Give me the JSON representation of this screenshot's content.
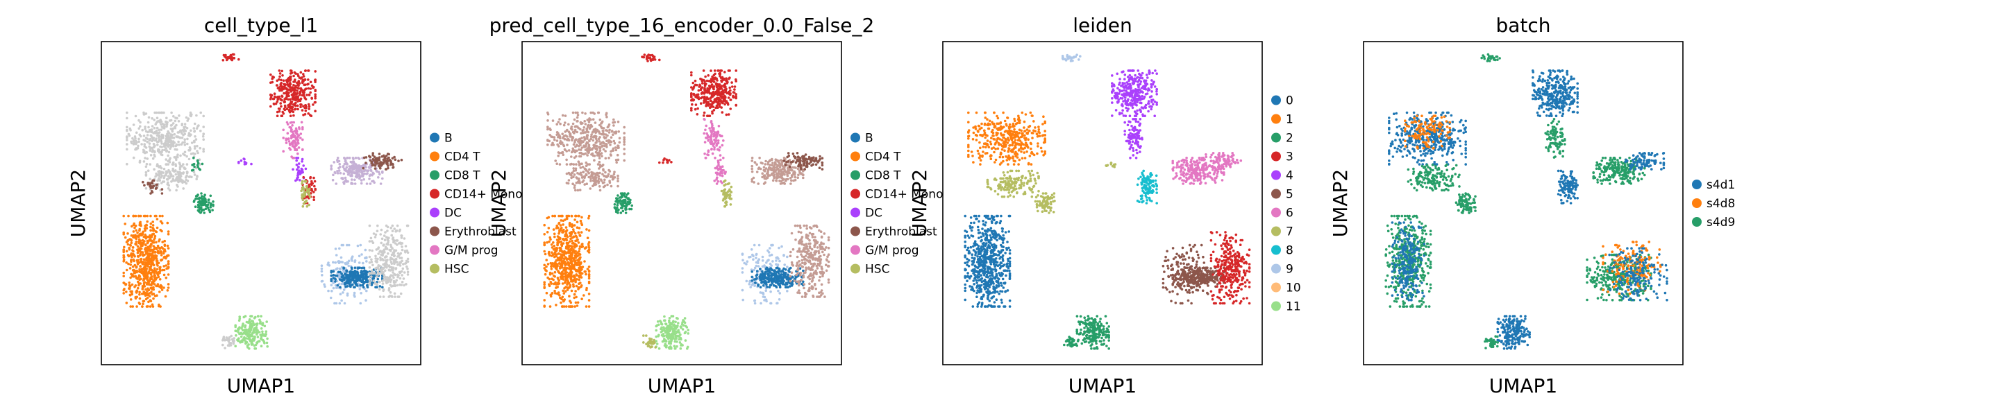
{
  "chart_data": [
    {
      "type": "scatter",
      "title": "cell_type_l1",
      "xlabel": "UMAP1",
      "ylabel": "UMAP2",
      "grid": false,
      "legend": "right",
      "legend_entries": [
        {
          "label": "B",
          "color": "#1f77b4"
        },
        {
          "label": "CD4 T",
          "color": "#ff7f0e"
        },
        {
          "label": "CD8 T",
          "color": "#279e68"
        },
        {
          "label": "CD14+ Mono",
          "color": "#d62728"
        },
        {
          "label": "DC",
          "color": "#aa40fc"
        },
        {
          "label": "Erythroblast",
          "color": "#8c564b"
        },
        {
          "label": "G/M prog",
          "color": "#e377c2"
        },
        {
          "label": "HSC",
          "color": "#b5bd61"
        }
      ],
      "clusters": [
        {
          "x": 0.4,
          "y": 0.95,
          "rx": 0.03,
          "ry": 0.01,
          "color": "#d62728",
          "n": 25
        },
        {
          "x": 0.6,
          "y": 0.84,
          "rx": 0.07,
          "ry": 0.07,
          "color": "#d62728",
          "n": 320
        },
        {
          "x": 0.6,
          "y": 0.7,
          "rx": 0.03,
          "ry": 0.06,
          "color": "#e377c2",
          "n": 90
        },
        {
          "x": 0.62,
          "y": 0.6,
          "rx": 0.02,
          "ry": 0.04,
          "color": "#aa40fc",
          "n": 40
        },
        {
          "x": 0.65,
          "y": 0.54,
          "rx": 0.02,
          "ry": 0.04,
          "color": "#d62728",
          "n": 50
        },
        {
          "x": 0.64,
          "y": 0.53,
          "rx": 0.015,
          "ry": 0.04,
          "color": "#b5bd61",
          "n": 40
        },
        {
          "x": 0.8,
          "y": 0.6,
          "rx": 0.08,
          "ry": 0.04,
          "color": "#c5b0d5",
          "n": 220
        },
        {
          "x": 0.88,
          "y": 0.63,
          "rx": 0.06,
          "ry": 0.025,
          "color": "#8c564b",
          "n": 90
        },
        {
          "x": 0.45,
          "y": 0.63,
          "rx": 0.02,
          "ry": 0.01,
          "color": "#aa40fc",
          "n": 10
        },
        {
          "x": 0.2,
          "y": 0.7,
          "rx": 0.12,
          "ry": 0.08,
          "color": "#cccccc",
          "n": 400
        },
        {
          "x": 0.22,
          "y": 0.58,
          "rx": 0.08,
          "ry": 0.04,
          "color": "#cccccc",
          "n": 150
        },
        {
          "x": 0.3,
          "y": 0.62,
          "rx": 0.03,
          "ry": 0.02,
          "color": "#279e68",
          "n": 15
        },
        {
          "x": 0.16,
          "y": 0.55,
          "rx": 0.03,
          "ry": 0.02,
          "color": "#8c564b",
          "n": 25
        },
        {
          "x": 0.32,
          "y": 0.5,
          "rx": 0.03,
          "ry": 0.03,
          "color": "#279e68",
          "n": 80
        },
        {
          "x": 0.14,
          "y": 0.32,
          "rx": 0.07,
          "ry": 0.14,
          "color": "#ff7f0e",
          "n": 620
        },
        {
          "x": 0.76,
          "y": 0.28,
          "rx": 0.07,
          "ry": 0.09,
          "color": "#aec7e8",
          "n": 150
        },
        {
          "x": 0.8,
          "y": 0.27,
          "rx": 0.08,
          "ry": 0.03,
          "color": "#1f77b4",
          "n": 260
        },
        {
          "x": 0.9,
          "y": 0.32,
          "rx": 0.06,
          "ry": 0.11,
          "color": "#cccccc",
          "n": 300
        },
        {
          "x": 0.47,
          "y": 0.1,
          "rx": 0.05,
          "ry": 0.05,
          "color": "#98df8a",
          "n": 200
        },
        {
          "x": 0.4,
          "y": 0.07,
          "rx": 0.02,
          "ry": 0.02,
          "color": "#cccccc",
          "n": 30
        }
      ]
    },
    {
      "type": "scatter",
      "title": "pred_cell_type_16_encoder_0.0_False_2",
      "xlabel": "UMAP1",
      "ylabel": "UMAP2",
      "grid": false,
      "legend": "right",
      "legend_entries": [
        {
          "label": "B",
          "color": "#1f77b4"
        },
        {
          "label": "CD4 T",
          "color": "#ff7f0e"
        },
        {
          "label": "CD8 T",
          "color": "#279e68"
        },
        {
          "label": "CD14+ Mono",
          "color": "#d62728"
        },
        {
          "label": "DC",
          "color": "#aa40fc"
        },
        {
          "label": "Erythroblast",
          "color": "#8c564b"
        },
        {
          "label": "G/M prog",
          "color": "#e377c2"
        },
        {
          "label": "HSC",
          "color": "#b5bd61"
        }
      ],
      "clusters": [
        {
          "x": 0.4,
          "y": 0.95,
          "rx": 0.03,
          "ry": 0.01,
          "color": "#d62728",
          "n": 25
        },
        {
          "x": 0.6,
          "y": 0.84,
          "rx": 0.07,
          "ry": 0.07,
          "color": "#d62728",
          "n": 320
        },
        {
          "x": 0.6,
          "y": 0.7,
          "rx": 0.03,
          "ry": 0.06,
          "color": "#e377c2",
          "n": 90
        },
        {
          "x": 0.62,
          "y": 0.6,
          "rx": 0.02,
          "ry": 0.04,
          "color": "#e377c2",
          "n": 40
        },
        {
          "x": 0.64,
          "y": 0.53,
          "rx": 0.015,
          "ry": 0.04,
          "color": "#b5bd61",
          "n": 50
        },
        {
          "x": 0.8,
          "y": 0.6,
          "rx": 0.08,
          "ry": 0.04,
          "color": "#c49c94",
          "n": 220
        },
        {
          "x": 0.88,
          "y": 0.63,
          "rx": 0.06,
          "ry": 0.025,
          "color": "#8c564b",
          "n": 90
        },
        {
          "x": 0.45,
          "y": 0.63,
          "rx": 0.02,
          "ry": 0.01,
          "color": "#d62728",
          "n": 10
        },
        {
          "x": 0.2,
          "y": 0.7,
          "rx": 0.12,
          "ry": 0.08,
          "color": "#c49c94",
          "n": 400
        },
        {
          "x": 0.22,
          "y": 0.58,
          "rx": 0.08,
          "ry": 0.04,
          "color": "#c49c94",
          "n": 150
        },
        {
          "x": 0.32,
          "y": 0.5,
          "rx": 0.03,
          "ry": 0.03,
          "color": "#279e68",
          "n": 80
        },
        {
          "x": 0.14,
          "y": 0.32,
          "rx": 0.07,
          "ry": 0.14,
          "color": "#ff7f0e",
          "n": 620
        },
        {
          "x": 0.76,
          "y": 0.28,
          "rx": 0.07,
          "ry": 0.09,
          "color": "#aec7e8",
          "n": 150
        },
        {
          "x": 0.8,
          "y": 0.27,
          "rx": 0.08,
          "ry": 0.03,
          "color": "#1f77b4",
          "n": 260
        },
        {
          "x": 0.9,
          "y": 0.32,
          "rx": 0.06,
          "ry": 0.11,
          "color": "#c49c94",
          "n": 300
        },
        {
          "x": 0.47,
          "y": 0.1,
          "rx": 0.05,
          "ry": 0.05,
          "color": "#98df8a",
          "n": 200
        },
        {
          "x": 0.4,
          "y": 0.07,
          "rx": 0.02,
          "ry": 0.02,
          "color": "#b5bd61",
          "n": 30
        }
      ]
    },
    {
      "type": "scatter",
      "title": "leiden",
      "xlabel": "UMAP1",
      "ylabel": "UMAP2",
      "grid": false,
      "legend": "right",
      "legend_entries": [
        {
          "label": "0",
          "color": "#1f77b4"
        },
        {
          "label": "1",
          "color": "#ff7f0e"
        },
        {
          "label": "2",
          "color": "#279e68"
        },
        {
          "label": "3",
          "color": "#d62728"
        },
        {
          "label": "4",
          "color": "#aa40fc"
        },
        {
          "label": "5",
          "color": "#8c564b"
        },
        {
          "label": "6",
          "color": "#e377c2"
        },
        {
          "label": "7",
          "color": "#b5bd61"
        },
        {
          "label": "8",
          "color": "#17becf"
        },
        {
          "label": "9",
          "color": "#aec7e8"
        },
        {
          "label": "10",
          "color": "#ffbb78"
        },
        {
          "label": "11",
          "color": "#98df8a"
        }
      ],
      "clusters": [
        {
          "x": 0.4,
          "y": 0.95,
          "rx": 0.03,
          "ry": 0.01,
          "color": "#aec7e8",
          "n": 25
        },
        {
          "x": 0.6,
          "y": 0.84,
          "rx": 0.07,
          "ry": 0.07,
          "color": "#aa40fc",
          "n": 320
        },
        {
          "x": 0.6,
          "y": 0.7,
          "rx": 0.03,
          "ry": 0.06,
          "color": "#aa40fc",
          "n": 90
        },
        {
          "x": 0.64,
          "y": 0.55,
          "rx": 0.03,
          "ry": 0.05,
          "color": "#17becf",
          "n": 110
        },
        {
          "x": 0.8,
          "y": 0.6,
          "rx": 0.08,
          "ry": 0.04,
          "color": "#e377c2",
          "n": 220
        },
        {
          "x": 0.88,
          "y": 0.63,
          "rx": 0.06,
          "ry": 0.025,
          "color": "#e377c2",
          "n": 90
        },
        {
          "x": 0.52,
          "y": 0.62,
          "rx": 0.02,
          "ry": 0.01,
          "color": "#b5bd61",
          "n": 10
        },
        {
          "x": 0.2,
          "y": 0.7,
          "rx": 0.12,
          "ry": 0.08,
          "color": "#ff7f0e",
          "n": 400
        },
        {
          "x": 0.22,
          "y": 0.56,
          "rx": 0.08,
          "ry": 0.04,
          "color": "#b5bd61",
          "n": 150
        },
        {
          "x": 0.32,
          "y": 0.5,
          "rx": 0.03,
          "ry": 0.03,
          "color": "#b5bd61",
          "n": 80
        },
        {
          "x": 0.14,
          "y": 0.32,
          "rx": 0.07,
          "ry": 0.14,
          "color": "#1f77b4",
          "n": 620
        },
        {
          "x": 0.76,
          "y": 0.28,
          "rx": 0.07,
          "ry": 0.09,
          "color": "#8c564b",
          "n": 150
        },
        {
          "x": 0.8,
          "y": 0.27,
          "rx": 0.08,
          "ry": 0.03,
          "color": "#8c564b",
          "n": 260
        },
        {
          "x": 0.9,
          "y": 0.3,
          "rx": 0.06,
          "ry": 0.11,
          "color": "#d62728",
          "n": 300
        },
        {
          "x": 0.47,
          "y": 0.1,
          "rx": 0.05,
          "ry": 0.05,
          "color": "#279e68",
          "n": 200
        },
        {
          "x": 0.4,
          "y": 0.07,
          "rx": 0.02,
          "ry": 0.02,
          "color": "#279e68",
          "n": 30
        }
      ]
    },
    {
      "type": "scatter",
      "title": "batch",
      "xlabel": "UMAP1",
      "ylabel": "UMAP2",
      "grid": false,
      "legend": "right",
      "legend_entries": [
        {
          "label": "s4d1",
          "color": "#1f77b4"
        },
        {
          "label": "s4d8",
          "color": "#ff7f0e"
        },
        {
          "label": "s4d9",
          "color": "#279e68"
        }
      ],
      "clusters": [
        {
          "x": 0.4,
          "y": 0.95,
          "rx": 0.03,
          "ry": 0.01,
          "color": "#279e68",
          "n": 25
        },
        {
          "x": 0.6,
          "y": 0.84,
          "rx": 0.07,
          "ry": 0.07,
          "color": "#1f77b4",
          "n": 320
        },
        {
          "x": 0.6,
          "y": 0.7,
          "rx": 0.03,
          "ry": 0.06,
          "color": "#279e68",
          "n": 90
        },
        {
          "x": 0.64,
          "y": 0.55,
          "rx": 0.03,
          "ry": 0.05,
          "color": "#1f77b4",
          "n": 110
        },
        {
          "x": 0.8,
          "y": 0.6,
          "rx": 0.08,
          "ry": 0.04,
          "color": "#279e68",
          "n": 220
        },
        {
          "x": 0.88,
          "y": 0.63,
          "rx": 0.06,
          "ry": 0.025,
          "color": "#1f77b4",
          "n": 90
        },
        {
          "x": 0.2,
          "y": 0.7,
          "rx": 0.12,
          "ry": 0.08,
          "color": "#1f77b4",
          "n": 400
        },
        {
          "x": 0.2,
          "y": 0.72,
          "rx": 0.07,
          "ry": 0.05,
          "color": "#ff7f0e",
          "n": 120
        },
        {
          "x": 0.22,
          "y": 0.58,
          "rx": 0.08,
          "ry": 0.04,
          "color": "#279e68",
          "n": 150
        },
        {
          "x": 0.32,
          "y": 0.5,
          "rx": 0.03,
          "ry": 0.03,
          "color": "#279e68",
          "n": 80
        },
        {
          "x": 0.14,
          "y": 0.32,
          "rx": 0.07,
          "ry": 0.14,
          "color": "#279e68",
          "n": 420
        },
        {
          "x": 0.14,
          "y": 0.32,
          "rx": 0.05,
          "ry": 0.12,
          "color": "#1f77b4",
          "n": 220
        },
        {
          "x": 0.8,
          "y": 0.27,
          "rx": 0.1,
          "ry": 0.07,
          "color": "#279e68",
          "n": 300
        },
        {
          "x": 0.84,
          "y": 0.3,
          "rx": 0.09,
          "ry": 0.08,
          "color": "#ff7f0e",
          "n": 160
        },
        {
          "x": 0.86,
          "y": 0.28,
          "rx": 0.09,
          "ry": 0.08,
          "color": "#1f77b4",
          "n": 160
        },
        {
          "x": 0.47,
          "y": 0.1,
          "rx": 0.05,
          "ry": 0.05,
          "color": "#1f77b4",
          "n": 200
        },
        {
          "x": 0.4,
          "y": 0.07,
          "rx": 0.02,
          "ry": 0.02,
          "color": "#279e68",
          "n": 30
        }
      ]
    }
  ]
}
